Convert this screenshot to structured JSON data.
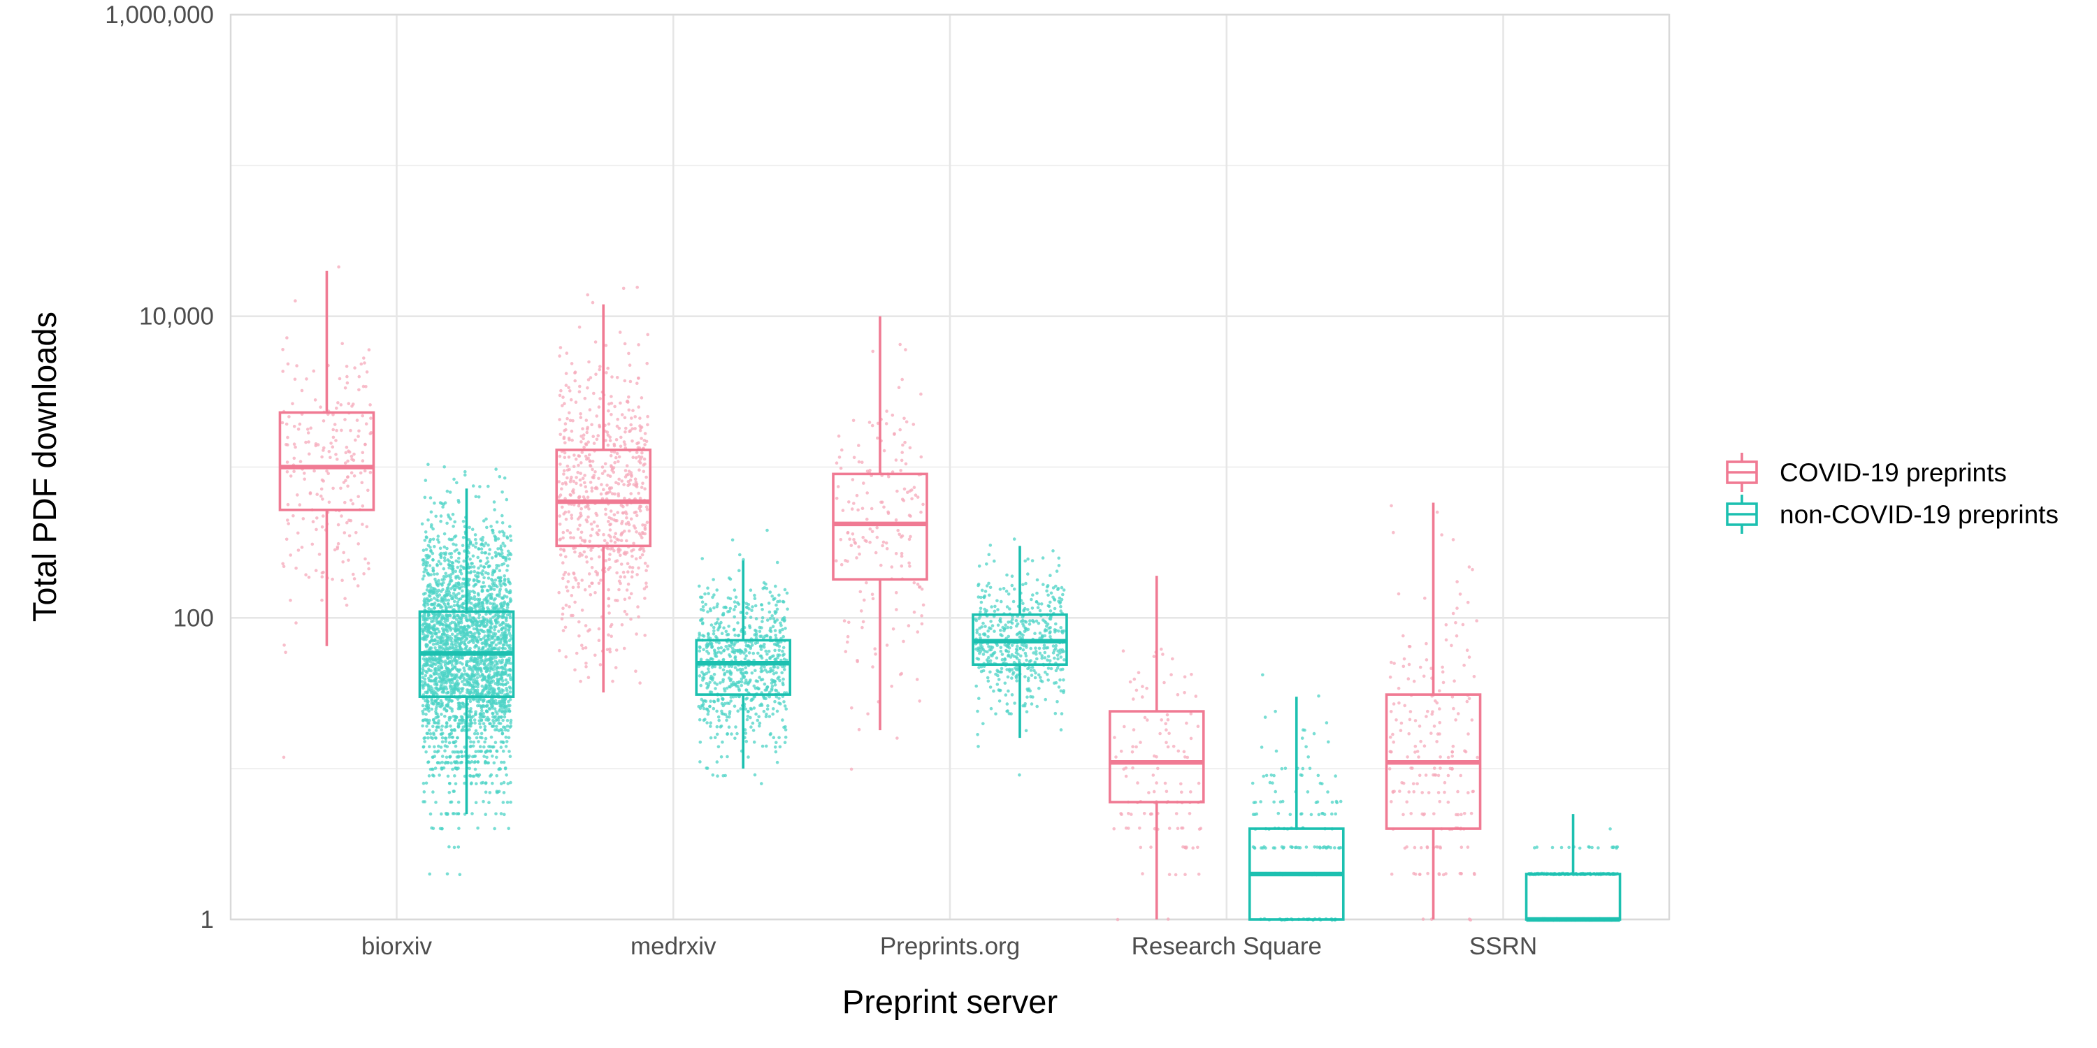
{
  "chart_data": {
    "type": "box",
    "xlabel": "Preprint server",
    "ylabel": "Total PDF downloads",
    "y_scale": "log10",
    "ylim": [
      1,
      1000000
    ],
    "y_ticks": [
      1,
      100,
      10000,
      1000000
    ],
    "y_tick_labels": [
      "1",
      "100",
      "10,000",
      "1,000,000"
    ],
    "categories": [
      "biorxiv",
      "medrxiv",
      "Preprints.org",
      "Research Square",
      "SSRN"
    ],
    "legend_position": "right",
    "grid": true,
    "series": [
      {
        "name": "COVID-19 preprints",
        "color": "#F8766D",
        "box_color": "#F07A93",
        "point_color": "#F6A8BA",
        "boxes": [
          {
            "category": "biorxiv",
            "lower_whisker": 65,
            "q1": 520,
            "median": 1000,
            "q3": 2300,
            "upper_whisker": 20000
          },
          {
            "category": "medrxiv",
            "lower_whisker": 32,
            "q1": 300,
            "median": 590,
            "q3": 1300,
            "upper_whisker": 12000
          },
          {
            "category": "Preprints.org",
            "lower_whisker": 18,
            "q1": 180,
            "median": 420,
            "q3": 900,
            "upper_whisker": 10000
          },
          {
            "category": "Research Square",
            "lower_whisker": 1,
            "q1": 6,
            "median": 11,
            "q3": 24,
            "upper_whisker": 190
          },
          {
            "category": "SSRN",
            "lower_whisker": 1,
            "q1": 4,
            "median": 11,
            "q3": 31,
            "upper_whisker": 580
          }
        ],
        "point_density": [
          220,
          650,
          180,
          120,
          220
        ]
      },
      {
        "name": "non-COVID-19 preprints",
        "color": "#00BFC4",
        "box_color": "#1CC0B0",
        "point_color": "#4CD3C6",
        "boxes": [
          {
            "category": "biorxiv",
            "lower_whisker": 5,
            "q1": 30,
            "median": 58,
            "q3": 110,
            "upper_whisker": 720
          },
          {
            "category": "medrxiv",
            "lower_whisker": 10,
            "q1": 31,
            "median": 50,
            "q3": 71,
            "upper_whisker": 240
          },
          {
            "category": "Preprints.org",
            "lower_whisker": 16,
            "q1": 49,
            "median": 70,
            "q3": 105,
            "upper_whisker": 300
          },
          {
            "category": "Research Square",
            "lower_whisker": 1,
            "q1": 1,
            "median": 2,
            "q3": 4,
            "upper_whisker": 30
          },
          {
            "category": "SSRN",
            "lower_whisker": 1,
            "q1": 1,
            "median": 1,
            "q3": 2,
            "upper_whisker": 5
          }
        ],
        "point_density": [
          2600,
          700,
          500,
          260,
          900
        ]
      }
    ]
  }
}
